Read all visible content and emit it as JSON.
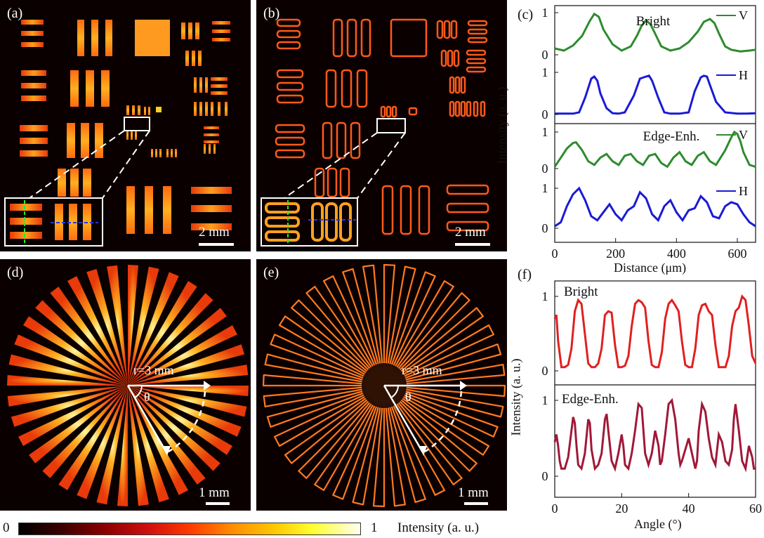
{
  "panels": {
    "a": {
      "label": "(a)",
      "scale": "2 mm"
    },
    "b": {
      "label": "(b)",
      "scale": "2 mm"
    },
    "d": {
      "label": "(d)",
      "scale": "1 mm",
      "radius_label": "r=3 mm",
      "angle_label": "θ"
    },
    "e": {
      "label": "(e)",
      "scale": "1 mm",
      "radius_label": "r=3 mm",
      "angle_label": "θ"
    }
  },
  "colorbar": {
    "min": "0",
    "max": "1",
    "title": "Intensity (a. u.)"
  },
  "colors": {
    "bright_v": "#2e8b2e",
    "bright_h": "#1a1ad6",
    "bright_f": "#e02020",
    "edge_f": "#a01838",
    "v_line": "#22ee22",
    "h_line": "#2233ff"
  },
  "chart_data": [
    {
      "panel": "(c)",
      "type": "line",
      "xlabel": "Distance (μm)",
      "ylabel": "Intensity (a. u.)",
      "xlim": [
        0,
        660
      ],
      "xticks": [
        "0",
        "200",
        "400",
        "600"
      ],
      "groups": [
        {
          "title": "Bright",
          "series": [
            {
              "name": "V",
              "x": [
                0,
                30,
                60,
                90,
                115,
                130,
                145,
                160,
                190,
                220,
                250,
                270,
                285,
                300,
                315,
                330,
                350,
                380,
                410,
                440,
                470,
                490,
                510,
                525,
                540,
                560,
                580,
                610,
                640,
                660
              ],
              "y": [
                0.15,
                0.1,
                0.22,
                0.45,
                0.8,
                0.97,
                0.9,
                0.6,
                0.25,
                0.1,
                0.2,
                0.45,
                0.68,
                0.82,
                0.72,
                0.5,
                0.2,
                0.1,
                0.15,
                0.3,
                0.55,
                0.78,
                0.85,
                0.75,
                0.5,
                0.2,
                0.12,
                0.08,
                0.1,
                0.12
              ],
              "yticks": [
                "0",
                "1"
              ]
            },
            {
              "name": "H",
              "x": [
                0,
                30,
                60,
                80,
                100,
                120,
                130,
                140,
                150,
                170,
                190,
                210,
                230,
                260,
                280,
                300,
                310,
                320,
                340,
                360,
                380,
                410,
                440,
                460,
                480,
                490,
                500,
                510,
                530,
                560,
                600,
                630,
                660
              ],
              "y": [
                0.02,
                0.02,
                0.02,
                0.05,
                0.4,
                0.85,
                0.9,
                0.8,
                0.5,
                0.15,
                0.03,
                0.02,
                0.05,
                0.45,
                0.85,
                0.9,
                0.92,
                0.8,
                0.4,
                0.05,
                0.02,
                0.02,
                0.05,
                0.55,
                0.88,
                0.92,
                0.9,
                0.7,
                0.3,
                0.05,
                0.02,
                0.02,
                0.03
              ],
              "yticks": [
                "0",
                "1"
              ]
            }
          ]
        },
        {
          "title": "Edge-Enh.",
          "series": [
            {
              "name": "V",
              "x": [
                0,
                20,
                40,
                60,
                70,
                90,
                110,
                130,
                150,
                170,
                190,
                210,
                230,
                250,
                270,
                290,
                310,
                330,
                350,
                370,
                390,
                410,
                430,
                450,
                470,
                490,
                510,
                530,
                560,
                580,
                590,
                600,
                610,
                620,
                640,
                660
              ],
              "y": [
                0.05,
                0.3,
                0.55,
                0.7,
                0.72,
                0.5,
                0.2,
                0.1,
                0.3,
                0.4,
                0.2,
                0.1,
                0.35,
                0.4,
                0.2,
                0.1,
                0.35,
                0.4,
                0.15,
                0.05,
                0.3,
                0.45,
                0.2,
                0.1,
                0.35,
                0.45,
                0.2,
                0.1,
                0.5,
                0.85,
                1.0,
                0.95,
                0.75,
                0.45,
                0.1,
                0.05
              ],
              "yticks": [
                "0",
                "1"
              ]
            },
            {
              "name": "H",
              "x": [
                0,
                20,
                40,
                60,
                80,
                100,
                120,
                140,
                160,
                180,
                200,
                220,
                240,
                260,
                280,
                300,
                320,
                340,
                360,
                380,
                400,
                420,
                440,
                460,
                480,
                500,
                520,
                540,
                560,
                580,
                600,
                620,
                640,
                660
              ],
              "y": [
                0.05,
                0.15,
                0.55,
                0.85,
                1.0,
                0.7,
                0.3,
                0.2,
                0.4,
                0.6,
                0.35,
                0.2,
                0.45,
                0.55,
                0.9,
                0.75,
                0.35,
                0.2,
                0.55,
                0.7,
                0.4,
                0.2,
                0.45,
                0.5,
                0.8,
                0.65,
                0.3,
                0.25,
                0.55,
                0.65,
                0.6,
                0.35,
                0.15,
                0.05
              ],
              "yticks": [
                "0",
                "1"
              ]
            }
          ]
        }
      ]
    },
    {
      "panel": "(f)",
      "type": "line",
      "xlabel": "Angle (°)",
      "ylabel": "Intensity (a. u.)",
      "xlim": [
        0,
        60
      ],
      "xticks": [
        "0",
        "20",
        "40",
        "60"
      ],
      "groups": [
        {
          "title": "Bright",
          "series": [
            {
              "name": "",
              "x": [
                0,
                0.5,
                1,
                2,
                3,
                4,
                5,
                6,
                7,
                8,
                9,
                10,
                11,
                12,
                13,
                14,
                15,
                16,
                17,
                18,
                19,
                20,
                21,
                22,
                23,
                24,
                25,
                26,
                27,
                28,
                29,
                30,
                31,
                32,
                33,
                34,
                35,
                36,
                37,
                38,
                39,
                40,
                41,
                42,
                43,
                44,
                45,
                46,
                47,
                48,
                49,
                50,
                51,
                52,
                53,
                54,
                55,
                56,
                57,
                58,
                59,
                60
              ],
              "y": [
                0.7,
                0.75,
                0.4,
                0.05,
                0.05,
                0.08,
                0.3,
                0.8,
                0.95,
                0.9,
                0.5,
                0.1,
                0.05,
                0.05,
                0.1,
                0.3,
                0.75,
                0.8,
                0.78,
                0.35,
                0.05,
                0.05,
                0.07,
                0.2,
                0.6,
                0.9,
                0.95,
                0.92,
                0.85,
                0.4,
                0.08,
                0.05,
                0.05,
                0.25,
                0.7,
                0.9,
                0.95,
                0.88,
                0.8,
                0.4,
                0.08,
                0.05,
                0.05,
                0.3,
                0.75,
                0.88,
                0.9,
                0.8,
                0.75,
                0.35,
                0.05,
                0.05,
                0.05,
                0.2,
                0.6,
                0.8,
                0.85,
                1.0,
                0.95,
                0.6,
                0.2,
                0.1
              ]
            }
          ]
        },
        {
          "title": "Edge-Enh.",
          "series": [
            {
              "name": "",
              "x": [
                0,
                0.5,
                1,
                1.5,
                2,
                3,
                4,
                5,
                5.5,
                6,
                6.5,
                7,
                8,
                9,
                10,
                10.5,
                11,
                12,
                13,
                14,
                15,
                15.5,
                16,
                17,
                18,
                19,
                20,
                20.5,
                21,
                22,
                23,
                24,
                25,
                26,
                26.5,
                27,
                28,
                29,
                30,
                31,
                31.5,
                32,
                33,
                34,
                35,
                36,
                37,
                37.5,
                38,
                39,
                40,
                41,
                42,
                42.5,
                43,
                44,
                45,
                46,
                47,
                48,
                48.5,
                49,
                50,
                51,
                52,
                53,
                53.5,
                54,
                55,
                56,
                57,
                57.5,
                58,
                59,
                59.5,
                60
              ],
              "y": [
                0.45,
                0.55,
                0.4,
                0.2,
                0.1,
                0.1,
                0.25,
                0.6,
                0.78,
                0.7,
                0.4,
                0.15,
                0.1,
                0.3,
                0.75,
                0.7,
                0.35,
                0.1,
                0.15,
                0.3,
                0.75,
                0.82,
                0.6,
                0.2,
                0.1,
                0.3,
                0.55,
                0.4,
                0.15,
                0.1,
                0.3,
                0.6,
                0.95,
                0.9,
                0.6,
                0.3,
                0.15,
                0.3,
                0.6,
                0.4,
                0.15,
                0.2,
                0.55,
                0.95,
                1.0,
                0.75,
                0.3,
                0.15,
                0.2,
                0.35,
                0.5,
                0.3,
                0.1,
                0.2,
                0.6,
                0.95,
                0.85,
                0.5,
                0.25,
                0.15,
                0.35,
                0.55,
                0.45,
                0.2,
                0.15,
                0.35,
                0.75,
                0.95,
                0.6,
                0.2,
                0.1,
                0.25,
                0.4,
                0.25,
                0.1,
                0.1
              ]
            }
          ]
        }
      ]
    }
  ]
}
